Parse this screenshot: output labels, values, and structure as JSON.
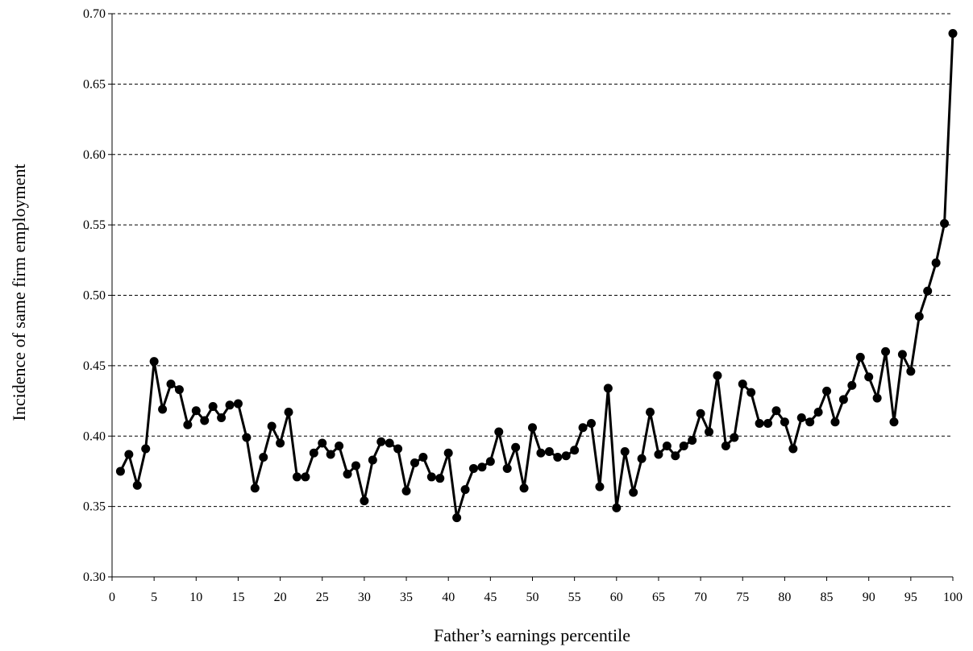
{
  "chart_data": {
    "type": "line",
    "title": "",
    "xlabel": "Father’s earnings percentile",
    "ylabel": "Incidence of same firm employment",
    "xlim": [
      0,
      100
    ],
    "ylim": [
      0.3,
      0.7
    ],
    "xticks": [
      "0",
      "5",
      "10",
      "15",
      "20",
      "25",
      "30",
      "35",
      "40",
      "45",
      "50",
      "55",
      "60",
      "65",
      "70",
      "75",
      "80",
      "85",
      "90",
      "95",
      "100"
    ],
    "yticks": [
      "0.30",
      "0.35",
      "0.40",
      "0.45",
      "0.50",
      "0.55",
      "0.60",
      "0.65",
      "0.70"
    ],
    "grid": "horizontal dashed",
    "legend": "none",
    "series": [
      {
        "x": [
          1,
          2,
          3,
          4,
          5,
          6,
          7,
          8,
          9,
          10,
          11,
          12,
          13,
          14,
          15,
          16,
          17,
          18,
          19,
          20,
          21,
          22,
          23,
          24,
          25,
          26,
          27,
          28,
          29,
          30,
          31,
          32,
          33,
          34,
          35,
          36,
          37,
          38,
          39,
          40,
          41,
          42,
          43,
          44,
          45,
          46,
          47,
          48,
          49,
          50,
          51,
          52,
          53,
          54,
          55,
          56,
          57,
          58,
          59,
          60,
          61,
          62,
          63,
          64,
          65,
          66,
          67,
          68,
          69,
          70,
          71,
          72,
          73,
          74,
          75,
          76,
          77,
          78,
          79,
          80,
          81,
          82,
          83,
          84,
          85,
          86,
          87,
          88,
          89,
          90,
          91,
          92,
          93,
          94,
          95,
          96,
          97,
          98,
          99,
          100
        ],
        "values": [
          0.375,
          0.387,
          0.365,
          0.391,
          0.453,
          0.419,
          0.437,
          0.433,
          0.408,
          0.418,
          0.411,
          0.421,
          0.413,
          0.422,
          0.423,
          0.399,
          0.363,
          0.385,
          0.407,
          0.395,
          0.417,
          0.371,
          0.371,
          0.388,
          0.395,
          0.387,
          0.393,
          0.373,
          0.379,
          0.354,
          0.383,
          0.396,
          0.395,
          0.391,
          0.361,
          0.381,
          0.385,
          0.371,
          0.37,
          0.388,
          0.342,
          0.362,
          0.377,
          0.378,
          0.382,
          0.403,
          0.377,
          0.392,
          0.363,
          0.406,
          0.388,
          0.389,
          0.385,
          0.386,
          0.39,
          0.406,
          0.409,
          0.364,
          0.434,
          0.349,
          0.389,
          0.36,
          0.384,
          0.417,
          0.387,
          0.393,
          0.386,
          0.393,
          0.397,
          0.416,
          0.403,
          0.443,
          0.393,
          0.399,
          0.437,
          0.431,
          0.409,
          0.409,
          0.418,
          0.41,
          0.391,
          0.413,
          0.41,
          0.417,
          0.432,
          0.41,
          0.426,
          0.436,
          0.456,
          0.442,
          0.427,
          0.46,
          0.41,
          0.458,
          0.446,
          0.485,
          0.503,
          0.523,
          0.551,
          0.686
        ]
      }
    ]
  }
}
